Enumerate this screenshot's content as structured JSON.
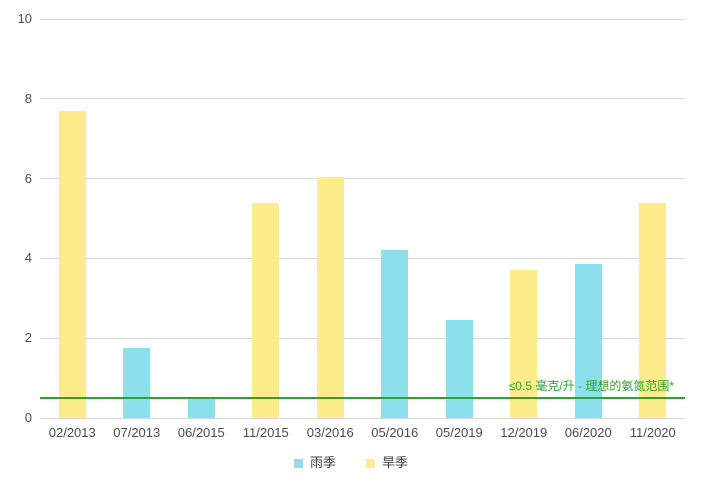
{
  "chart_data": {
    "type": "bar",
    "title": "",
    "xlabel": "",
    "ylabel": "",
    "categories": [
      "02/2013",
      "07/2013",
      "06/2015",
      "11/2015",
      "03/2016",
      "05/2016",
      "05/2019",
      "12/2019",
      "06/2020",
      "11/2020"
    ],
    "series": [
      {
        "name": "雨季",
        "color": "#8cdfec",
        "values": [
          null,
          1.75,
          0.5,
          null,
          null,
          4.2,
          2.45,
          null,
          3.85,
          null
        ]
      },
      {
        "name": "旱季",
        "color": "#fcec8c",
        "values": [
          7.7,
          null,
          null,
          5.4,
          6.05,
          null,
          null,
          3.7,
          null,
          5.4
        ]
      }
    ],
    "ylim": [
      0,
      10
    ],
    "yticks": [
      0,
      2,
      4,
      6,
      8,
      10
    ],
    "grid": true,
    "legend_position": "bottom",
    "threshold": {
      "value": 0.5,
      "label": "≤0.5 毫克/升 - 理想的氨氮范围*",
      "color": "#2ca42a"
    }
  },
  "colors": {
    "gridline": "#d8d8d8",
    "axis_text": "#4b4b4b",
    "background": "#ffffff"
  }
}
